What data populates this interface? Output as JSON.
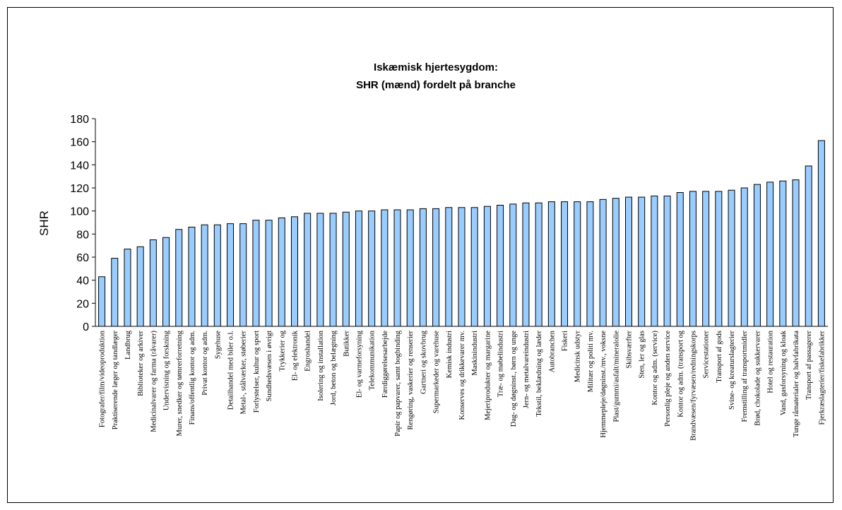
{
  "chart_data": {
    "type": "bar",
    "title": [
      "Iskæmisk hjertesygdom:",
      "SHR (mænd) fordelt på branche"
    ],
    "y_label": "SHR",
    "categories": [
      "Fotografer/film/videoproduktion",
      "Praktiserende læger og tandlæger",
      "Landbrug",
      "Biblioteker og arkiver",
      "Medicinalvarer og farma (råvarer)",
      "Undervisning og forskning",
      "Murer, snedker og tømrerforretning",
      "Finans/offentlig kontor og adm.",
      "Privat kontor og adm.",
      "Sygehuse",
      "Detailhandel med biler o.l.",
      "Metal-, stålværker, støberier",
      "Forlystelser, kultur og sport",
      "Sundhedsvæsen i øvrigt",
      "Trykkerier og",
      "El- og elektronik",
      "Engroshandel",
      "Isolering og installation",
      "Jord, beton og belægning",
      "Butikker",
      "El- og varmeforsyning",
      "Telekommunikation",
      "Færdiggørelsesarbejde",
      "Papir og papvarer, samt bogbinding",
      "Rengøring, vaskerier og renserier",
      "Gartneri og skovbrug",
      "Supermarkeder og varehuse",
      "Kemisk industri",
      "Konserves og drikkevarer mv.",
      "Maskinindustri",
      "Mejeriprodukter og margarine",
      "Træ- og møbelindustri",
      "Dag- og døgninst., børn og unge",
      "Jern- og metalvareindustri",
      "Tekstil, beklædning og læder",
      "Autobranchen",
      "Fiskeri",
      "Medicinsk udstyr",
      "Militær og politi mv.",
      "Hjemmepleje/døgninst./mv., voksne",
      "Plast/gummi/asfalt/mineralolie",
      "Skibsværfter",
      "Sten, ler og glas",
      "Kontor og adm. (service)",
      "Personlig pleje og anden service",
      "Kontor og adm. (transport og",
      "Brandvæsen/fyrvæsen/redningskorps",
      "Servicestationer",
      "Transport af gods",
      "Svine- og kreaturslagterier",
      "Fremstilling af transportmidler",
      "Brød, chokolade og sukkervarer",
      "Hotel og restauration",
      "Vand, gasforsyning og kloak",
      "Tunge råmaterialer og halvfabrikata",
      "Transport af passagerer",
      "Fjerkræslagterier/fiskefabrikker"
    ],
    "values": [
      43,
      59,
      67,
      69,
      75,
      77,
      84,
      86,
      88,
      88,
      89,
      89,
      92,
      92,
      94,
      95,
      98,
      98,
      98,
      99,
      100,
      100,
      101,
      101,
      101,
      102,
      102,
      103,
      103,
      103,
      104,
      105,
      106,
      107,
      107,
      108,
      108,
      108,
      108,
      110,
      111,
      112,
      112,
      113,
      113,
      116,
      117,
      117,
      117,
      118,
      120,
      123,
      125,
      126,
      127,
      139,
      161
    ],
    "color": "#99ccff",
    "ylim": [
      0,
      180
    ],
    "yticks": [
      0,
      20,
      40,
      60,
      80,
      100,
      120,
      140,
      160,
      180
    ],
    "grid": false
  }
}
